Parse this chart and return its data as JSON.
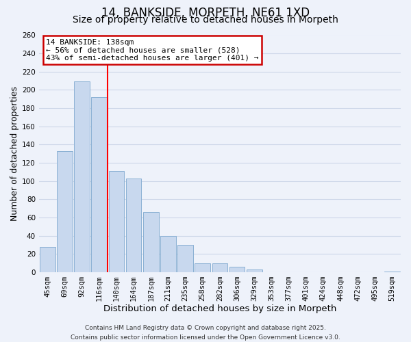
{
  "title": "14, BANKSIDE, MORPETH, NE61 1XD",
  "subtitle": "Size of property relative to detached houses in Morpeth",
  "xlabel": "Distribution of detached houses by size in Morpeth",
  "ylabel": "Number of detached properties",
  "bar_categories": [
    "45sqm",
    "69sqm",
    "92sqm",
    "116sqm",
    "140sqm",
    "164sqm",
    "187sqm",
    "211sqm",
    "235sqm",
    "258sqm",
    "282sqm",
    "306sqm",
    "329sqm",
    "353sqm",
    "377sqm",
    "401sqm",
    "424sqm",
    "448sqm",
    "472sqm",
    "495sqm",
    "519sqm"
  ],
  "bar_values": [
    28,
    133,
    209,
    192,
    111,
    103,
    66,
    40,
    30,
    10,
    10,
    6,
    3,
    0,
    0,
    0,
    0,
    0,
    0,
    0,
    1
  ],
  "bar_color": "#c8d8ee",
  "bar_edge_color": "#8ab0d4",
  "vline_index": 3.5,
  "vline_color": "red",
  "annotation_title": "14 BANKSIDE: 138sqm",
  "annotation_line1": "← 56% of detached houses are smaller (528)",
  "annotation_line2": "43% of semi-detached houses are larger (401) →",
  "annotation_box_color": "white",
  "annotation_box_edge_color": "#cc0000",
  "ylim": [
    0,
    260
  ],
  "yticks": [
    0,
    20,
    40,
    60,
    80,
    100,
    120,
    140,
    160,
    180,
    200,
    220,
    240,
    260
  ],
  "grid_color": "#ccd6e8",
  "background_color": "#eef2fa",
  "footer_line1": "Contains HM Land Registry data © Crown copyright and database right 2025.",
  "footer_line2": "Contains public sector information licensed under the Open Government Licence v3.0.",
  "title_fontsize": 12,
  "subtitle_fontsize": 10,
  "xlabel_fontsize": 9.5,
  "ylabel_fontsize": 9,
  "tick_fontsize": 7.5,
  "annotation_fontsize": 8,
  "footer_fontsize": 6.5
}
